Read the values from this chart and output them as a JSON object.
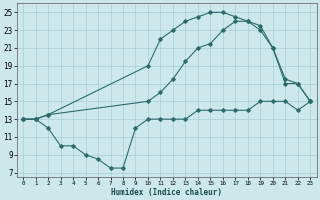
{
  "xlabel": "Humidex (Indice chaleur)",
  "ylabel": "",
  "xlim": [
    -0.5,
    23.5
  ],
  "ylim": [
    6.5,
    26
  ],
  "yticks": [
    7,
    9,
    11,
    13,
    15,
    17,
    19,
    21,
    23,
    25
  ],
  "xticks": [
    0,
    1,
    2,
    3,
    4,
    5,
    6,
    7,
    8,
    9,
    10,
    11,
    12,
    13,
    14,
    15,
    16,
    17,
    18,
    19,
    20,
    21,
    22,
    23
  ],
  "bg_color": "#cce8ea",
  "grid_color": "#aacdd2",
  "line_color": "#2d6b6b",
  "line1_x": [
    0,
    1,
    2,
    3,
    4,
    5,
    6,
    7,
    8,
    9,
    10,
    11,
    12,
    13,
    14,
    15,
    16,
    17,
    18,
    19,
    20,
    21,
    22,
    23
  ],
  "line1_y": [
    13,
    13,
    12,
    10,
    10,
    9,
    8.5,
    7.5,
    7.5,
    12,
    13,
    13,
    13,
    13,
    14,
    14,
    14,
    14,
    14,
    15,
    15,
    15,
    14,
    15
  ],
  "line2_x": [
    0,
    1,
    2,
    10,
    11,
    12,
    13,
    14,
    15,
    16,
    17,
    18,
    19,
    20,
    21,
    22,
    23
  ],
  "line2_y": [
    13,
    13,
    13.5,
    19,
    22,
    23,
    24,
    24.5,
    25,
    25,
    24.5,
    24,
    23.5,
    21,
    17.5,
    17,
    15
  ],
  "line3_x": [
    0,
    1,
    2,
    10,
    11,
    12,
    13,
    14,
    15,
    16,
    17,
    18,
    19,
    20,
    21,
    22,
    23
  ],
  "line3_y": [
    13,
    13,
    13.5,
    15,
    16,
    17.5,
    19.5,
    21,
    21.5,
    23,
    24,
    24,
    23,
    21,
    17,
    17,
    15
  ]
}
